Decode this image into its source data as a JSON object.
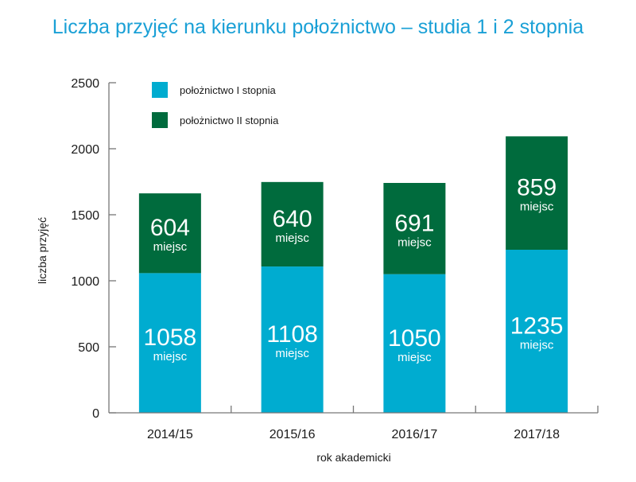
{
  "chart_data": {
    "type": "bar",
    "stacked": true,
    "title": "Liczba przyjęć na kierunku położnictwo – studia 1 i 2 stopnia",
    "xlabel": "rok akademicki",
    "ylabel": "liczba przyjęć",
    "ylim": [
      0,
      2500
    ],
    "yticks": [
      0,
      500,
      1000,
      1500,
      2000,
      2500
    ],
    "grid": false,
    "legend_position": "top-left",
    "categories": [
      "2014/15",
      "2015/16",
      "2016/17",
      "2017/18"
    ],
    "value_unit": "miejsc",
    "series": [
      {
        "name": "położnictwo I stopnia",
        "color": "#00acd0",
        "values": [
          1058,
          1108,
          1050,
          1235
        ]
      },
      {
        "name": "położnictwo II stopnia",
        "color": "#006b3d",
        "values": [
          604,
          640,
          691,
          859
        ]
      }
    ]
  }
}
